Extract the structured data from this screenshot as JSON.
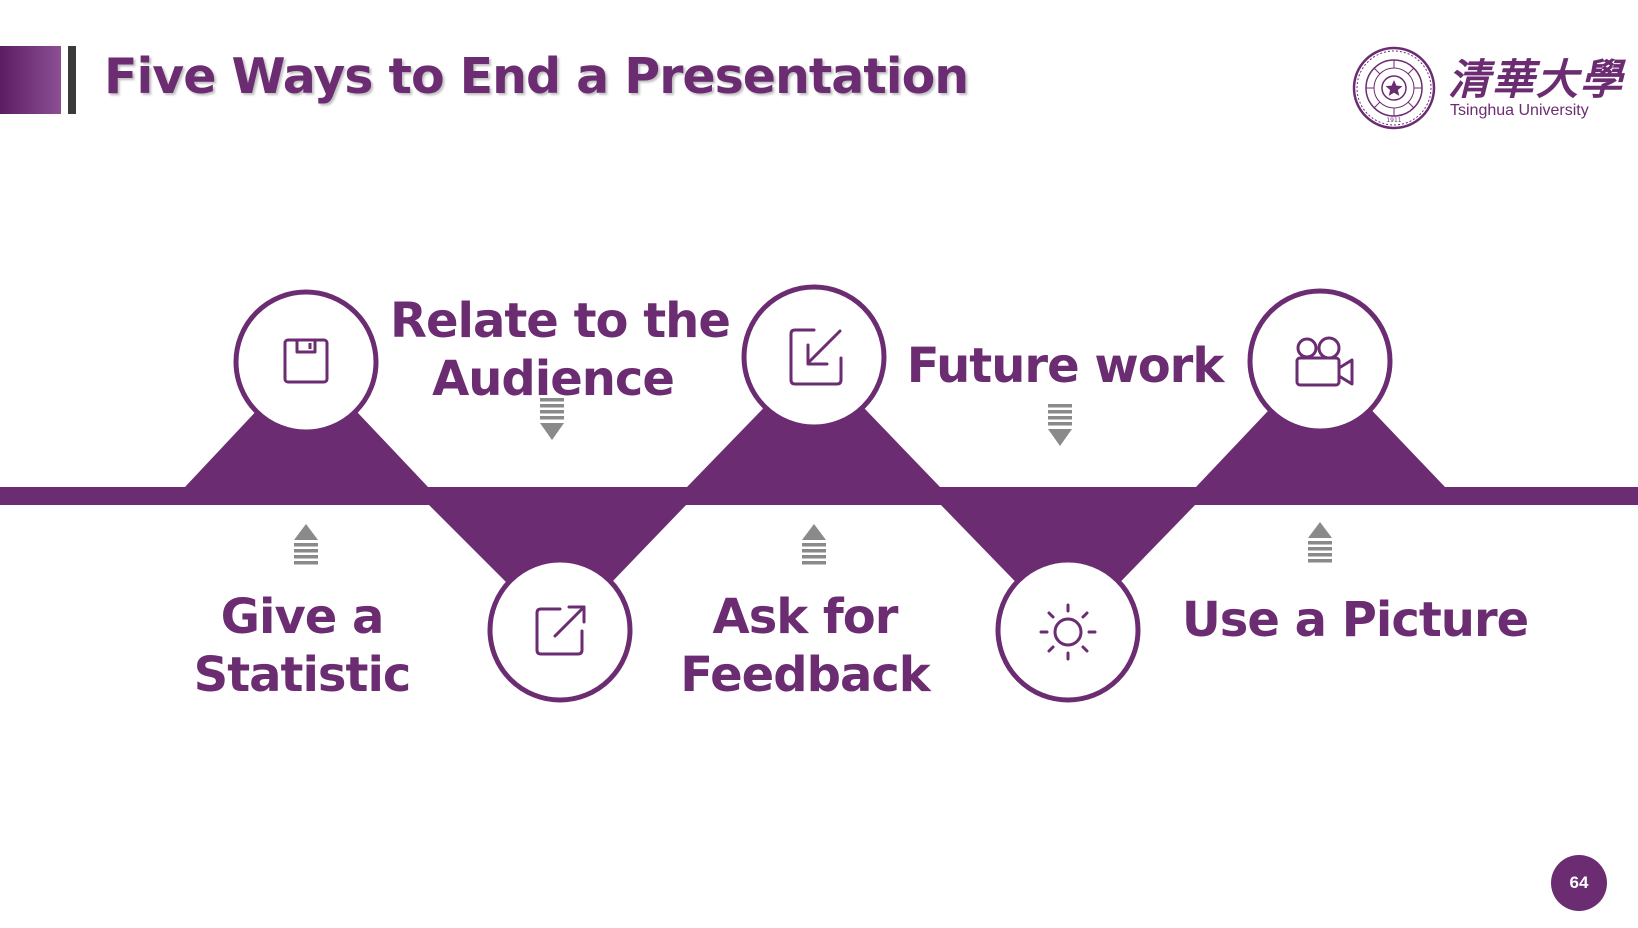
{
  "slide": {
    "title": "Five Ways to End a Presentation",
    "page_number": "64"
  },
  "logo": {
    "chinese_name": "清華大學",
    "english_name": "Tsinghua University",
    "seal_year": "1911"
  },
  "colors": {
    "brand_purple": "#6b2c72",
    "arrow_gray": "#8a8a8a"
  },
  "steps": [
    {
      "label_line1": "Give a",
      "label_line2": "Statistic",
      "icon": "save-icon",
      "position": "top-circle"
    },
    {
      "label_line1": "Relate to the",
      "label_line2": "Audience",
      "icon": "external-link-icon",
      "position": "bottom-circle"
    },
    {
      "label_line1": "Ask for",
      "label_line2": "Feedback",
      "icon": "arrow-down-left-icon",
      "position": "top-circle"
    },
    {
      "label_line1": "Future work",
      "label_line2": "",
      "icon": "sun-icon",
      "position": "bottom-circle"
    },
    {
      "label_line1": "Use a Picture",
      "label_line2": "",
      "icon": "video-camera-icon",
      "position": "top-circle"
    }
  ]
}
